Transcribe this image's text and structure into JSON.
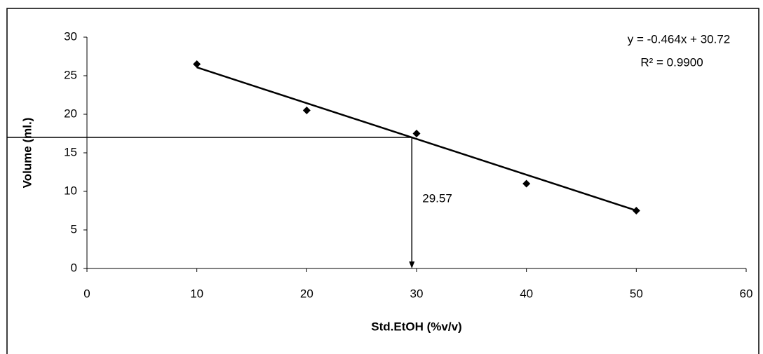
{
  "chart_data": {
    "type": "scatter",
    "x_label": "Std.EtOH (%v/v)",
    "y_label": "Volume (ml.)",
    "x": [
      10,
      20,
      30,
      40,
      50
    ],
    "values": [
      26.5,
      20.5,
      17.5,
      11,
      7.5
    ],
    "color": "#000000",
    "xlim": [
      0,
      60
    ],
    "xticks": [
      0,
      10,
      20,
      30,
      40,
      50,
      60
    ],
    "ylim": [
      0,
      30
    ],
    "yticks": [
      0,
      5,
      10,
      15,
      20,
      25,
      30
    ],
    "grid": false,
    "trendline": {
      "slope": -0.464,
      "intercept": 30.72,
      "equation": "y = -0.464x + 30.72",
      "r2_label": "R² = 0.9900"
    },
    "guide_x": 29.57
  }
}
